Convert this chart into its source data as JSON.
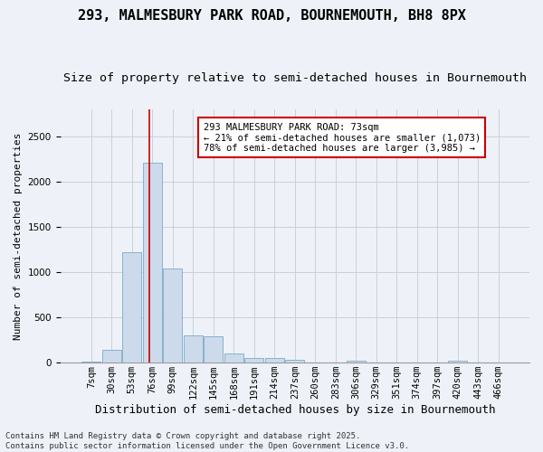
{
  "title": "293, MALMESBURY PARK ROAD, BOURNEMOUTH, BH8 8PX",
  "subtitle": "Size of property relative to semi-detached houses in Bournemouth",
  "xlabel": "Distribution of semi-detached houses by size in Bournemouth",
  "ylabel": "Number of semi-detached properties",
  "bin_labels": [
    "7sqm",
    "30sqm",
    "53sqm",
    "76sqm",
    "99sqm",
    "122sqm",
    "145sqm",
    "168sqm",
    "191sqm",
    "214sqm",
    "237sqm",
    "260sqm",
    "283sqm",
    "306sqm",
    "329sqm",
    "351sqm",
    "374sqm",
    "397sqm",
    "420sqm",
    "443sqm",
    "466sqm"
  ],
  "bar_values": [
    10,
    140,
    1220,
    2210,
    1040,
    300,
    295,
    105,
    55,
    55,
    30,
    5,
    0,
    25,
    0,
    0,
    0,
    0,
    25,
    0,
    0
  ],
  "bar_color": "#ccdaeb",
  "bar_edge_color": "#7aaac8",
  "grid_color": "#c8d0dc",
  "bg_color": "#eef2f8",
  "vline_color": "#cc0000",
  "vline_pos": 2.87,
  "annotation_text": "293 MALMESBURY PARK ROAD: 73sqm\n← 21% of semi-detached houses are smaller (1,073)\n78% of semi-detached houses are larger (3,985) →",
  "annotation_box_color": "#ffffff",
  "annotation_box_edge": "#cc0000",
  "footer_text": "Contains HM Land Registry data © Crown copyright and database right 2025.\nContains public sector information licensed under the Open Government Licence v3.0.",
  "ylim": [
    0,
    2800
  ],
  "yticks": [
    0,
    500,
    1000,
    1500,
    2000,
    2500
  ],
  "title_fontsize": 11,
  "subtitle_fontsize": 9.5,
  "xlabel_fontsize": 9,
  "ylabel_fontsize": 8,
  "tick_fontsize": 7.5,
  "annotation_fontsize": 7.5,
  "footer_fontsize": 6.5
}
